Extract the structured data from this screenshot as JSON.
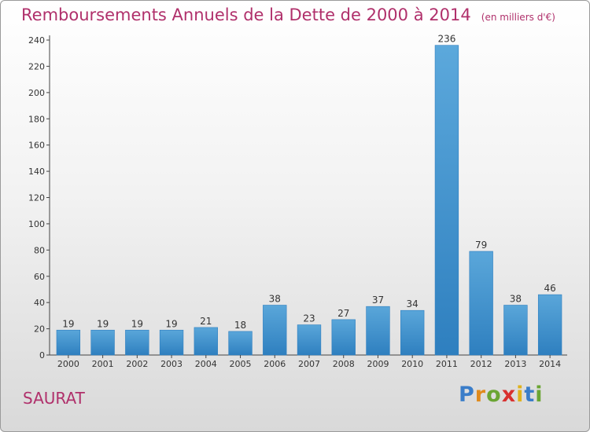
{
  "title": "Remboursements Annuels de la Dette de 2000 à 2014",
  "unit": "(en milliers d'€)",
  "commune": "SAURAT",
  "logo": {
    "letters": [
      "P",
      "r",
      "o",
      "x",
      "i",
      "t",
      "i"
    ],
    "colors": [
      "#3a7dc9",
      "#e08a1c",
      "#6aa533",
      "#d8302f",
      "#e0b21c",
      "#3a7dc9",
      "#6aa533"
    ]
  },
  "colors": {
    "bar": "#4a9fd8",
    "bar_dark": "#2e7fbf",
    "title": "#b0306b"
  },
  "chart_data": {
    "type": "bar",
    "categories": [
      "2000",
      "2001",
      "2002",
      "2003",
      "2004",
      "2005",
      "2006",
      "2007",
      "2008",
      "2009",
      "2010",
      "2011",
      "2012",
      "2013",
      "2014"
    ],
    "values": [
      19,
      19,
      19,
      19,
      21,
      18,
      38,
      23,
      27,
      37,
      34,
      236,
      79,
      38,
      46
    ],
    "ylim": [
      0,
      240
    ],
    "yticks": [
      0,
      20,
      40,
      60,
      80,
      100,
      120,
      140,
      160,
      180,
      200,
      220,
      240
    ],
    "grid": false
  }
}
